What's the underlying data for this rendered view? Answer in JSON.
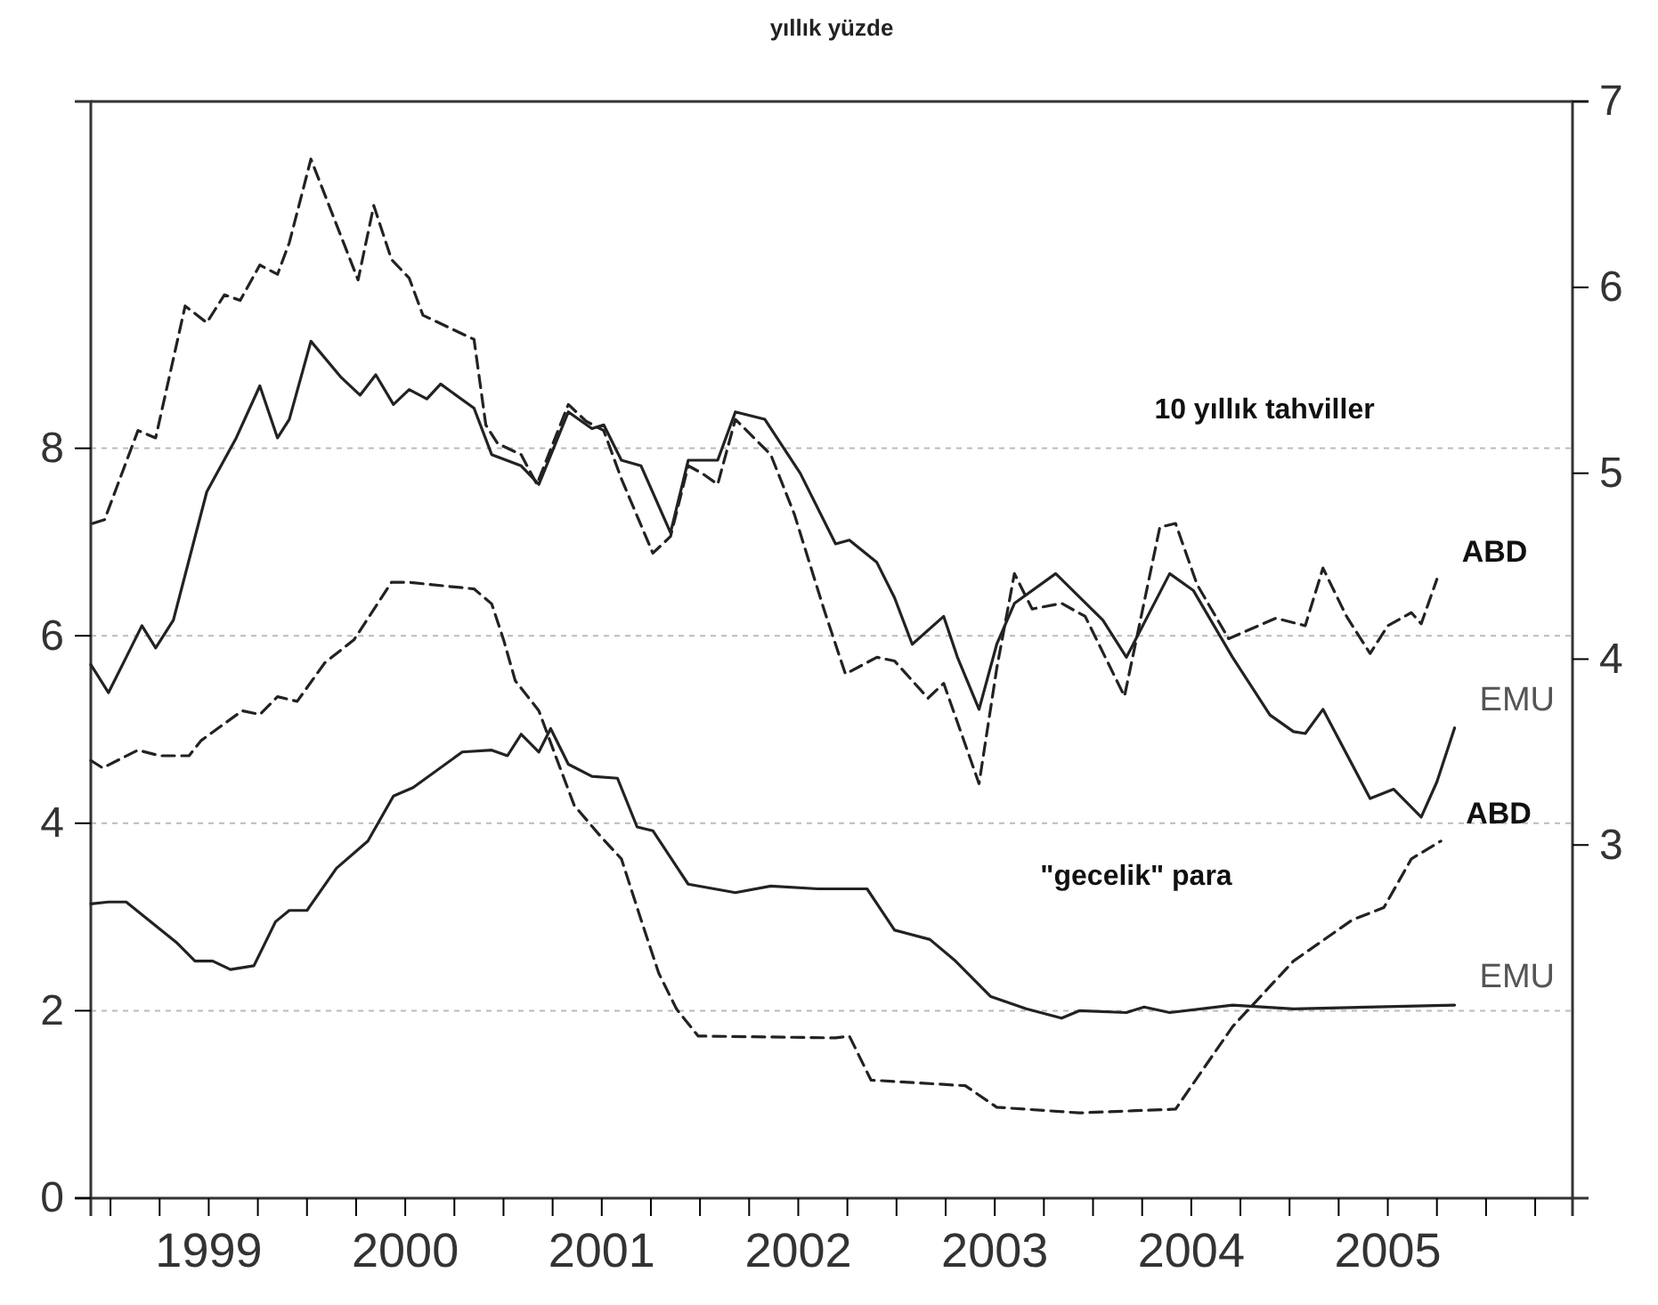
{
  "chart_data": {
    "type": "line",
    "title": "yıllık yüzde",
    "annotations": [
      "10 yıllık tahviller",
      "\"gecelik\" para"
    ],
    "xlim": [
      1998.9,
      2006.44
    ],
    "xticks": [
      {
        "value": 1999,
        "label": null
      },
      {
        "value": 1999.25,
        "label": null
      },
      {
        "value": 1999.5,
        "label": "1999"
      },
      {
        "value": 1999.75,
        "label": null
      },
      {
        "value": 2000,
        "label": null
      },
      {
        "value": 2000.25,
        "label": null
      },
      {
        "value": 2000.5,
        "label": "2000"
      },
      {
        "value": 2000.75,
        "label": null
      },
      {
        "value": 2001,
        "label": null
      },
      {
        "value": 2001.25,
        "label": null
      },
      {
        "value": 2001.5,
        "label": "2001"
      },
      {
        "value": 2001.75,
        "label": null
      },
      {
        "value": 2002,
        "label": null
      },
      {
        "value": 2002.25,
        "label": null
      },
      {
        "value": 2002.5,
        "label": "2002"
      },
      {
        "value": 2002.75,
        "label": null
      },
      {
        "value": 2003,
        "label": null
      },
      {
        "value": 2003.25,
        "label": null
      },
      {
        "value": 2003.5,
        "label": "2003"
      },
      {
        "value": 2003.75,
        "label": null
      },
      {
        "value": 2004,
        "label": null
      },
      {
        "value": 2004.25,
        "label": null
      },
      {
        "value": 2004.5,
        "label": "2004"
      },
      {
        "value": 2004.75,
        "label": null
      },
      {
        "value": 2005,
        "label": null
      },
      {
        "value": 2005.25,
        "label": null
      },
      {
        "value": 2005.5,
        "label": "2005"
      },
      {
        "value": 2005.75,
        "label": null
      },
      {
        "value": 2006,
        "label": null
      },
      {
        "value": 2006.25,
        "label": null
      }
    ],
    "ylim": [
      0,
      11.7
    ],
    "yticks": [
      0,
      2,
      4,
      6,
      8
    ],
    "y2lim": [
      1.1,
      7
    ],
    "y2ticks": [
      3,
      4,
      5,
      6,
      7
    ],
    "grid": "y",
    "series": [
      {
        "name": "ABD",
        "color": "#222222",
        "line_style": "dashed",
        "axis": "y2",
        "x": [
          1998.91,
          1998.97,
          1999.14,
          1999.23,
          1999.38,
          1999.49,
          1999.58,
          1999.66,
          1999.76,
          1999.85,
          1999.91,
          2000.02,
          2000.26,
          2000.34,
          2000.43,
          2000.52,
          2000.59,
          2000.85,
          2000.91,
          2000.97,
          2001.09,
          2001.17,
          2001.33,
          2001.42,
          2001.51,
          2001.6,
          2001.76,
          2001.85,
          2001.94,
          2002.01,
          2002.09,
          2002.18,
          2002.36,
          2002.48,
          2002.63,
          2002.74,
          2002.9,
          2002.99,
          2003.16,
          2003.24,
          2003.42,
          2003.51,
          2003.6,
          2003.69,
          2003.84,
          2003.96,
          2004.16,
          2004.34,
          2004.42,
          2004.53,
          2004.69,
          2004.93,
          2005.08,
          2005.17,
          2005.29,
          2005.41,
          2005.5,
          2005.62,
          2005.67,
          2005.75
        ],
        "values": [
          4.73,
          4.75,
          5.23,
          5.19,
          5.9,
          5.81,
          5.96,
          5.93,
          6.12,
          6.07,
          6.24,
          6.69,
          6.04,
          6.44,
          6.15,
          6.05,
          5.85,
          5.72,
          5.26,
          5.16,
          5.1,
          4.94,
          5.37,
          5.28,
          5.23,
          4.97,
          4.57,
          4.66,
          5.04,
          5.0,
          4.94,
          5.29,
          5.1,
          4.78,
          4.27,
          3.92,
          4.01,
          3.99,
          3.79,
          3.87,
          3.33,
          3.95,
          4.46,
          4.27,
          4.3,
          4.23,
          3.8,
          4.71,
          4.73,
          4.4,
          4.11,
          4.22,
          4.18,
          4.49,
          4.23,
          4.03,
          4.18,
          4.25,
          4.19,
          4.43
        ]
      },
      {
        "name": "EMU",
        "color": "#222222",
        "line_style": "solid",
        "axis": "y2",
        "x": [
          1998.9,
          1998.99,
          1999.08,
          1999.16,
          1999.23,
          1999.32,
          1999.49,
          1999.64,
          1999.76,
          1999.85,
          1999.91,
          2000.02,
          2000.17,
          2000.27,
          2000.35,
          2000.44,
          2000.52,
          2000.61,
          2000.68,
          2000.85,
          2000.94,
          2001.09,
          2001.18,
          2001.33,
          2001.45,
          2001.51,
          2001.6,
          2001.7,
          2001.85,
          2001.94,
          2002.09,
          2002.18,
          2002.33,
          2002.51,
          2002.69,
          2002.76,
          2002.9,
          2002.99,
          2003.08,
          2003.24,
          2003.31,
          2003.42,
          2003.51,
          2003.6,
          2003.81,
          2004.05,
          2004.17,
          2004.39,
          2004.51,
          2004.71,
          2004.9,
          2005.02,
          2005.08,
          2005.17,
          2005.41,
          2005.53,
          2005.67,
          2005.75,
          2005.84
        ],
        "values": [
          3.97,
          3.82,
          4.01,
          4.18,
          4.06,
          4.21,
          4.9,
          5.19,
          5.47,
          5.19,
          5.29,
          5.71,
          5.52,
          5.42,
          5.53,
          5.37,
          5.45,
          5.4,
          5.48,
          5.35,
          5.1,
          5.04,
          4.94,
          5.33,
          5.24,
          5.26,
          5.07,
          5.04,
          4.68,
          5.07,
          5.07,
          5.33,
          5.29,
          5.0,
          4.62,
          4.64,
          4.52,
          4.33,
          4.08,
          4.23,
          4.01,
          3.73,
          4.08,
          4.3,
          4.46,
          4.21,
          4.01,
          4.46,
          4.37,
          4.01,
          3.7,
          3.61,
          3.6,
          3.73,
          3.25,
          3.3,
          3.15,
          3.34,
          3.63
        ]
      },
      {
        "name": "ABD",
        "color": "#222222",
        "line_style": "dashed",
        "x": [
          1998.9,
          1998.96,
          1999.14,
          1999.25,
          1999.4,
          1999.46,
          1999.67,
          1999.76,
          1999.85,
          1999.95,
          2000.09,
          2000.24,
          2000.43,
          2000.52,
          2000.85,
          2000.94,
          2001.0,
          2001.06,
          2001.18,
          2001.27,
          2001.36,
          2001.49,
          2001.6,
          2001.7,
          2001.79,
          2001.88,
          2001.99,
          2002.69,
          2002.76,
          2002.87,
          2003.35,
          2003.51,
          2003.93,
          2004.42,
          2004.71,
          2005.02,
          2005.32,
          2005.48,
          2005.62,
          2005.77
        ],
        "values": [
          4.67,
          4.59,
          4.78,
          4.72,
          4.72,
          4.88,
          5.2,
          5.16,
          5.35,
          5.3,
          5.71,
          5.96,
          6.57,
          6.57,
          6.5,
          6.34,
          5.96,
          5.52,
          5.2,
          4.69,
          4.19,
          3.87,
          3.62,
          2.97,
          2.4,
          2.02,
          1.73,
          1.71,
          1.73,
          1.26,
          1.2,
          0.97,
          0.91,
          0.95,
          1.83,
          2.53,
          2.97,
          3.1,
          3.62,
          3.81
        ]
      },
      {
        "name": "EMU",
        "color": "#222222",
        "line_style": "solid",
        "x": [
          1998.9,
          1998.99,
          1999.08,
          1999.34,
          1999.43,
          1999.52,
          1999.61,
          1999.73,
          1999.84,
          1999.91,
          2000.0,
          2000.15,
          2000.31,
          2000.44,
          2000.54,
          2000.79,
          2000.94,
          2001.02,
          2001.09,
          2001.18,
          2001.24,
          2001.33,
          2001.45,
          2001.58,
          2001.68,
          2001.76,
          2001.94,
          2002.18,
          2002.36,
          2002.6,
          2002.85,
          2002.99,
          2003.17,
          2003.3,
          2003.48,
          2003.66,
          2003.84,
          2003.93,
          2004.17,
          2004.26,
          2004.39,
          2004.71,
          2005.02,
          2005.84
        ],
        "values": [
          3.14,
          3.16,
          3.16,
          2.72,
          2.53,
          2.53,
          2.44,
          2.48,
          2.95,
          3.07,
          3.07,
          3.52,
          3.81,
          4.29,
          4.38,
          4.76,
          4.78,
          4.72,
          4.95,
          4.76,
          5.01,
          4.63,
          4.5,
          4.48,
          3.96,
          3.92,
          3.35,
          3.26,
          3.33,
          3.3,
          3.3,
          2.86,
          2.76,
          2.53,
          2.15,
          2.02,
          1.92,
          2.0,
          1.98,
          2.04,
          1.98,
          2.06,
          2.02,
          2.06
        ]
      }
    ]
  }
}
